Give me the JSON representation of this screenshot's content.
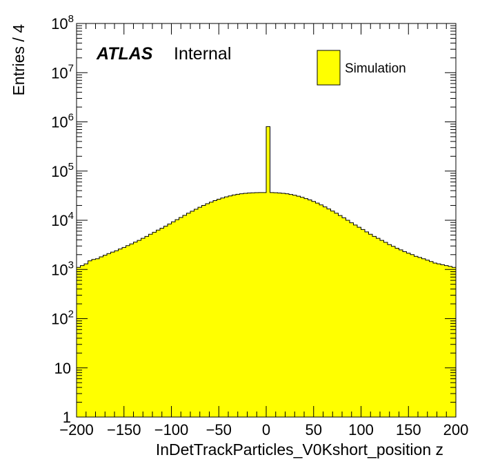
{
  "chart_data": {
    "type": "bar",
    "title": "",
    "xlabel": "InDetTrackParticles_V0Kshort_position z",
    "ylabel": "Entries / 4",
    "xlim": [
      -200,
      200
    ],
    "ylim": [
      1,
      100000000
    ],
    "yscale": "log",
    "bin_width": 4,
    "x_ticks": [
      "−200",
      "−150",
      "−100",
      "−50",
      "0",
      "50",
      "100",
      "150",
      "200"
    ],
    "y_ticks": [
      {
        "base": "1",
        "exp": ""
      },
      {
        "base": "10",
        "exp": ""
      },
      {
        "base": "10",
        "exp": "2"
      },
      {
        "base": "10",
        "exp": "3"
      },
      {
        "base": "10",
        "exp": "4"
      },
      {
        "base": "10",
        "exp": "5"
      },
      {
        "base": "10",
        "exp": "6"
      },
      {
        "base": "10",
        "exp": "7"
      },
      {
        "base": "10",
        "exp": "8"
      }
    ],
    "x": [
      -198,
      -194,
      -190,
      -186,
      -182,
      -178,
      -174,
      -170,
      -166,
      -162,
      -158,
      -154,
      -150,
      -146,
      -142,
      -138,
      -134,
      -130,
      -126,
      -122,
      -118,
      -114,
      -110,
      -106,
      -102,
      -98,
      -94,
      -90,
      -86,
      -82,
      -78,
      -74,
      -70,
      -66,
      -62,
      -58,
      -54,
      -50,
      -46,
      -42,
      -38,
      -34,
      -30,
      -26,
      -22,
      -18,
      -14,
      -10,
      -6,
      -2,
      2,
      6,
      10,
      14,
      18,
      22,
      26,
      30,
      34,
      38,
      42,
      46,
      50,
      54,
      58,
      62,
      66,
      70,
      74,
      78,
      82,
      86,
      90,
      94,
      98,
      102,
      106,
      110,
      114,
      118,
      122,
      126,
      130,
      134,
      138,
      142,
      146,
      150,
      154,
      158,
      162,
      166,
      170,
      174,
      178,
      182,
      186,
      190,
      194,
      198
    ],
    "series": [
      {
        "name": "Simulation",
        "color": "#ffff00",
        "values": [
          1100,
          1200,
          1300,
          1500,
          1600,
          1650,
          1800,
          1950,
          2100,
          2250,
          2400,
          2600,
          2800,
          3050,
          3300,
          3600,
          3900,
          4300,
          4700,
          5200,
          5700,
          6300,
          6900,
          7600,
          8400,
          9300,
          10300,
          11400,
          12600,
          13900,
          15300,
          16800,
          18400,
          20000,
          21700,
          23400,
          25100,
          26800,
          28400,
          29900,
          31300,
          32600,
          33700,
          34600,
          35300,
          35800,
          36200,
          36400,
          36500,
          36600,
          800000,
          36500,
          36300,
          35900,
          35300,
          34500,
          33500,
          32300,
          30900,
          29300,
          27600,
          25900,
          24100,
          22300,
          20500,
          18700,
          17000,
          15400,
          13900,
          12500,
          11200,
          10000,
          8900,
          8000,
          7200,
          6500,
          5800,
          5200,
          4700,
          4300,
          3900,
          3550,
          3200,
          2950,
          2700,
          2500,
          2300,
          2150,
          2000,
          1850,
          1750,
          1650,
          1550,
          1450,
          1350,
          1300,
          1250,
          1200,
          1150,
          1100
        ]
      }
    ],
    "annotations": {
      "atlas_bold": "ATLAS",
      "atlas_status": "Internal"
    },
    "legend": {
      "placement": "top-right",
      "entries": [
        "Simulation"
      ]
    },
    "grid": false
  }
}
